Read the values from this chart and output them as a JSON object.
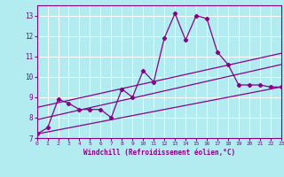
{
  "xlabel": "Windchill (Refroidissement éolien,°C)",
  "xlim": [
    0,
    23
  ],
  "ylim": [
    7,
    13.5
  ],
  "yticks": [
    7,
    8,
    9,
    10,
    11,
    12,
    13
  ],
  "xticks": [
    0,
    1,
    2,
    3,
    4,
    5,
    6,
    7,
    8,
    9,
    10,
    11,
    12,
    13,
    14,
    15,
    16,
    17,
    18,
    19,
    20,
    21,
    22,
    23
  ],
  "bg_color": "#b2ebf0",
  "line_color": "#880088",
  "grid_color": "#ffffff",
  "line1_x": [
    0,
    1,
    2,
    3,
    4,
    5,
    6,
    7,
    8,
    9,
    10,
    11,
    12,
    13,
    14,
    15,
    16,
    17,
    18,
    19,
    20,
    21,
    22,
    23
  ],
  "line1_y": [
    7.2,
    7.5,
    8.9,
    8.7,
    8.4,
    8.4,
    8.4,
    8.0,
    9.4,
    9.0,
    10.3,
    9.75,
    11.9,
    13.1,
    11.8,
    13.0,
    12.85,
    11.2,
    10.6,
    9.6,
    9.6,
    9.6,
    9.5,
    9.5
  ],
  "line2_x": [
    0,
    23
  ],
  "line2_y": [
    7.2,
    9.5
  ],
  "line3_x": [
    0,
    23
  ],
  "line3_y": [
    7.9,
    10.6
  ],
  "line4_x": [
    0,
    23
  ],
  "line4_y": [
    8.5,
    11.15
  ]
}
